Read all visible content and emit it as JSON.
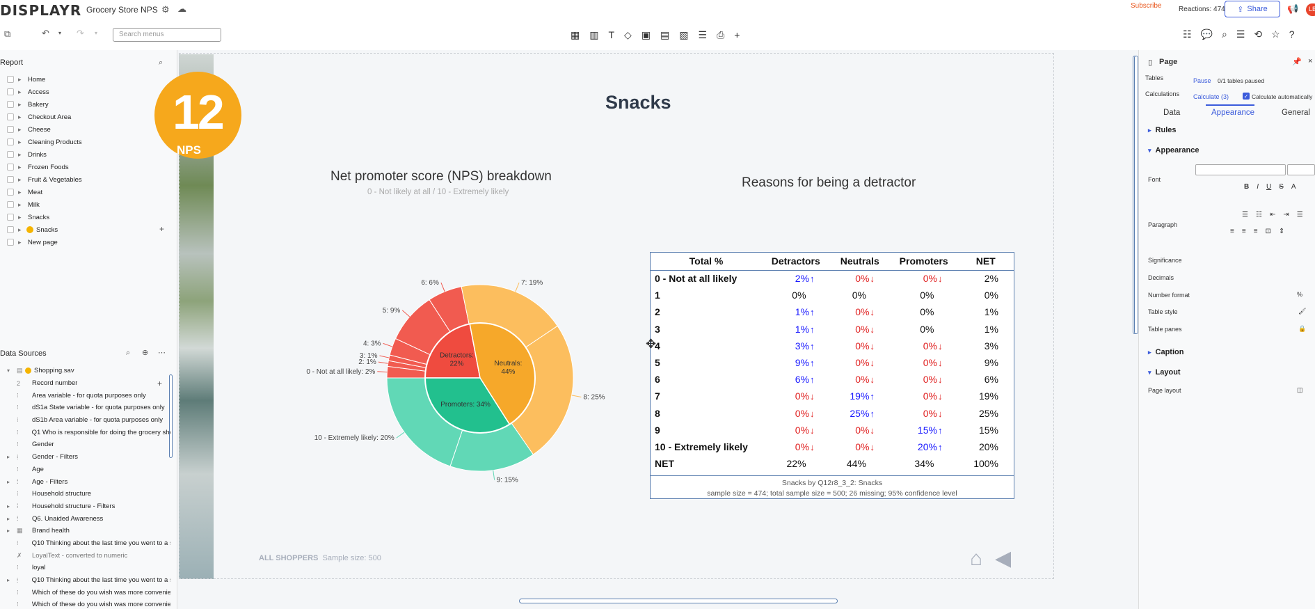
{
  "app": {
    "logo": "DISPLAYR",
    "doc_title": "Grocery Store NPS",
    "subscribe": "Subscribe",
    "reactions": "Reactions: 474",
    "share": "Share",
    "avatar_initials": "LB"
  },
  "toolbar": {
    "search_placeholder": "Search menus"
  },
  "report": {
    "title": "Report",
    "items": [
      "Home",
      "Access",
      "Bakery",
      "Checkout Area",
      "Cheese",
      "Cleaning Products",
      "Drinks",
      "Frozen Foods",
      "Fruit & Vegetables",
      "Meat",
      "Milk",
      "Snacks",
      "Snacks",
      "New page"
    ]
  },
  "data_sources": {
    "title": "Data Sources",
    "file": "Shopping.sav",
    "items": [
      "Record number",
      "Area variable - for quota purposes only",
      "dS1a State variable - for quota purposes only",
      "dS1b Area variable - for quota purposes only",
      "Q1 Who is responsible for doing the grocery sho",
      "Gender",
      "Gender - Filters",
      "Age",
      "Age - Filters",
      "Household structure",
      "Household structure - Filters",
      "Q6. Unaided Awareness",
      "Brand health",
      "Q10 Thinking about the last time you went to a s",
      "LoyalText - converted to numeric",
      "loyal",
      "Q10 Thinking about the last time you went to a s",
      "Which of these do you wish was more convenie",
      "Which of these do you wish was more convenie"
    ]
  },
  "page": {
    "nps_number": "12",
    "nps_label": "NPS",
    "title": "Snacks",
    "chart_title": "Net promoter score (NPS) breakdown",
    "chart_subtitle": "0 - Not likely at all / 10 - Extremely likely",
    "detractor_title": "Reasons for being a detractor",
    "footer_group": "ALL SHOPPERS",
    "footer_sample": "Sample size: 500"
  },
  "chart_data": {
    "type": "pie",
    "title": "Net promoter score (NPS) breakdown",
    "subtitle": "0 - Not likely at all / 10 - Extremely likely",
    "inner_ring": [
      {
        "label": "Detractors",
        "value": 22,
        "color": "#ef4b3f"
      },
      {
        "label": "Neutrals",
        "value": 44,
        "color": "#f6a82a"
      },
      {
        "label": "Promoters",
        "value": 34,
        "color": "#22c08e"
      }
    ],
    "outer_ring": [
      {
        "label": "0 - Not at all likely",
        "value": 2,
        "group": "Detractors"
      },
      {
        "label": "1",
        "value": 0,
        "group": "Detractors"
      },
      {
        "label": "2",
        "value": 1,
        "group": "Detractors"
      },
      {
        "label": "3",
        "value": 1,
        "group": "Detractors"
      },
      {
        "label": "4",
        "value": 3,
        "group": "Detractors"
      },
      {
        "label": "5",
        "value": 9,
        "group": "Detractors"
      },
      {
        "label": "6",
        "value": 6,
        "group": "Detractors"
      },
      {
        "label": "7",
        "value": 19,
        "group": "Neutrals"
      },
      {
        "label": "8",
        "value": 25,
        "group": "Neutrals"
      },
      {
        "label": "9",
        "value": 15,
        "group": "Promoters"
      },
      {
        "label": "10 - Extremely likely",
        "value": 20,
        "group": "Promoters"
      }
    ]
  },
  "table": {
    "headers": [
      "Total %",
      "Detractors",
      "Neutrals",
      "Promoters",
      "NET"
    ],
    "rows": [
      {
        "label": "0 - Not at all likely",
        "cells": [
          {
            "v": "2%",
            "s": "up"
          },
          {
            "v": "0%",
            "s": "down"
          },
          {
            "v": "0%",
            "s": "down"
          },
          {
            "v": "2%",
            "s": ""
          }
        ]
      },
      {
        "label": "1",
        "cells": [
          {
            "v": "0%",
            "s": ""
          },
          {
            "v": "0%",
            "s": ""
          },
          {
            "v": "0%",
            "s": ""
          },
          {
            "v": "0%",
            "s": ""
          }
        ]
      },
      {
        "label": "2",
        "cells": [
          {
            "v": "1%",
            "s": "up"
          },
          {
            "v": "0%",
            "s": "down"
          },
          {
            "v": "0%",
            "s": ""
          },
          {
            "v": "1%",
            "s": ""
          }
        ]
      },
      {
        "label": "3",
        "cells": [
          {
            "v": "1%",
            "s": "up"
          },
          {
            "v": "0%",
            "s": "down"
          },
          {
            "v": "0%",
            "s": ""
          },
          {
            "v": "1%",
            "s": ""
          }
        ]
      },
      {
        "label": "4",
        "cells": [
          {
            "v": "3%",
            "s": "up"
          },
          {
            "v": "0%",
            "s": "down"
          },
          {
            "v": "0%",
            "s": "down"
          },
          {
            "v": "3%",
            "s": ""
          }
        ]
      },
      {
        "label": "5",
        "cells": [
          {
            "v": "9%",
            "s": "up"
          },
          {
            "v": "0%",
            "s": "down"
          },
          {
            "v": "0%",
            "s": "down"
          },
          {
            "v": "9%",
            "s": ""
          }
        ]
      },
      {
        "label": "6",
        "cells": [
          {
            "v": "6%",
            "s": "up"
          },
          {
            "v": "0%",
            "s": "down"
          },
          {
            "v": "0%",
            "s": "down"
          },
          {
            "v": "6%",
            "s": ""
          }
        ]
      },
      {
        "label": "7",
        "cells": [
          {
            "v": "0%",
            "s": "down"
          },
          {
            "v": "19%",
            "s": "up"
          },
          {
            "v": "0%",
            "s": "down"
          },
          {
            "v": "19%",
            "s": ""
          }
        ]
      },
      {
        "label": "8",
        "cells": [
          {
            "v": "0%",
            "s": "down"
          },
          {
            "v": "25%",
            "s": "up"
          },
          {
            "v": "0%",
            "s": "down"
          },
          {
            "v": "25%",
            "s": ""
          }
        ]
      },
      {
        "label": "9",
        "cells": [
          {
            "v": "0%",
            "s": "down"
          },
          {
            "v": "0%",
            "s": "down"
          },
          {
            "v": "15%",
            "s": "up"
          },
          {
            "v": "15%",
            "s": ""
          }
        ]
      },
      {
        "label": "10 - Extremely likely",
        "cells": [
          {
            "v": "0%",
            "s": "down"
          },
          {
            "v": "0%",
            "s": "down"
          },
          {
            "v": "20%",
            "s": "up"
          },
          {
            "v": "20%",
            "s": ""
          }
        ]
      },
      {
        "label": "NET",
        "cells": [
          {
            "v": "22%",
            "s": ""
          },
          {
            "v": "44%",
            "s": ""
          },
          {
            "v": "34%",
            "s": ""
          },
          {
            "v": "100%",
            "s": ""
          }
        ]
      }
    ],
    "footnote_1": "Snacks by Q12r8_3_2: Snacks",
    "footnote_2": "sample size = 474; total sample size = 500; 26 missing; 95% confidence level"
  },
  "right_panel": {
    "title": "Page",
    "tables_label": "Tables",
    "pause": "Pause",
    "tables_paused": "0/1 tables paused",
    "calculations_label": "Calculations",
    "calculate": "Calculate (3)",
    "calc_auto": "Calculate automatically",
    "tabs": [
      "Data",
      "Appearance",
      "General"
    ],
    "sections": {
      "rules": "Rules",
      "appearance": "Appearance",
      "caption": "Caption",
      "layout": "Layout"
    },
    "props": {
      "font": "Font",
      "paragraph": "Paragraph",
      "significance": "Significance",
      "decimals": "Decimals",
      "number_format": "Number format",
      "table_style": "Table style",
      "table_panes": "Table panes",
      "page_layout": "Page layout"
    }
  }
}
